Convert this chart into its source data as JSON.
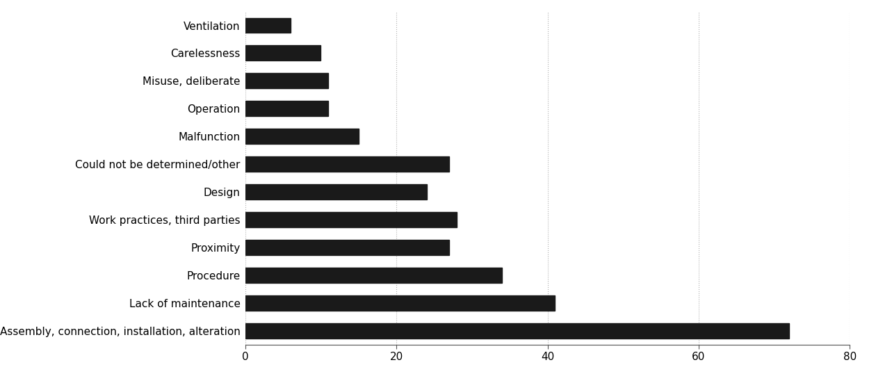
{
  "categories": [
    "Assembly, connection, installation, alteration",
    "Lack of maintenance",
    "Procedure",
    "Proximity",
    "Work practices, third parties",
    "Design",
    "Could not be determined/other",
    "Malfunction",
    "Operation",
    "Misuse, deliberate",
    "Carelessness",
    "Ventilation"
  ],
  "values": [
    72,
    41,
    34,
    27,
    28,
    24,
    27,
    15,
    11,
    11,
    10,
    6
  ],
  "bar_color": "#1a1a1a",
  "background_color": "#ffffff",
  "xlim": [
    0,
    80
  ],
  "xticks": [
    0,
    20,
    40,
    60,
    80
  ],
  "grid_color": "#b0b0b0",
  "grid_linestyle": ":",
  "label_fontsize": 11,
  "tick_fontsize": 11,
  "bar_height": 0.55
}
